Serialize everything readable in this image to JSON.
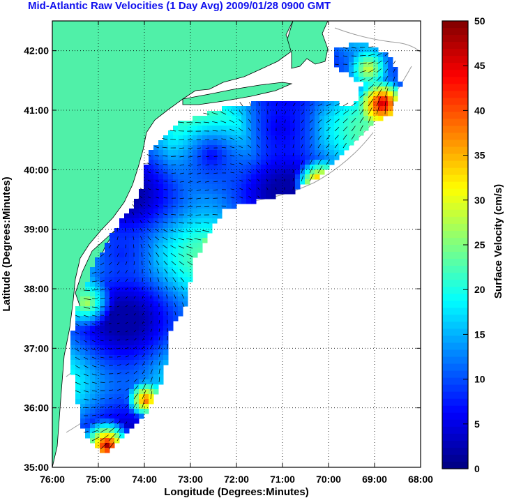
{
  "title": "Mid-Atlantic Raw Velocities (1 Day Avg) 2009/01/28 0900 GMT",
  "map": {
    "x_axis_label": "Longitude (Degrees:Minutes)",
    "y_axis_label": "Latitude (Degrees:Minutes)",
    "x_ticks": [
      "76:00",
      "75:00",
      "74:00",
      "73:00",
      "72:00",
      "71:00",
      "70:00",
      "69:00",
      "68:00"
    ],
    "y_ticks": [
      "42:00",
      "41:00",
      "40:00",
      "39:00",
      "38:00",
      "37:00",
      "36:00",
      "35:00"
    ],
    "lon_range": [
      -76,
      -68
    ],
    "lat_range": [
      35,
      42.5
    ],
    "land_color": "#50f0a8",
    "grid": "dotted"
  },
  "colorbar": {
    "label": "Surface Velocity (cm/s)",
    "ticks": [
      "50",
      "45",
      "40",
      "35",
      "30",
      "25",
      "20",
      "15",
      "10",
      "5",
      "0"
    ],
    "range": [
      0,
      50
    ]
  }
}
